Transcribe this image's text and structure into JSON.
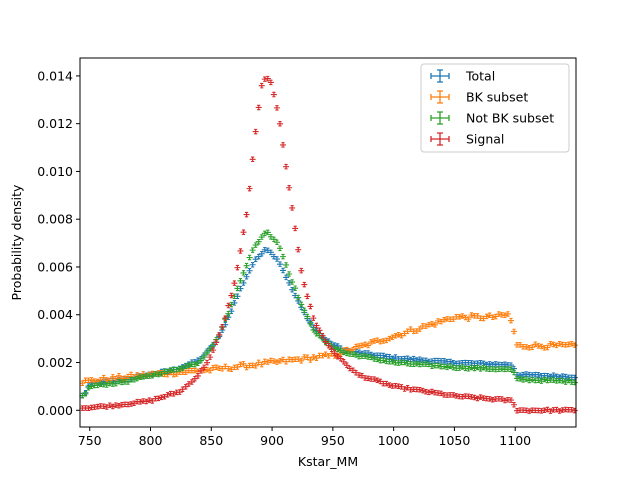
{
  "chart_data": {
    "type": "scatter",
    "title": "",
    "xlabel": "Kstar_MM",
    "ylabel": "Probability density",
    "xlim": [
      742,
      1150
    ],
    "ylim": [
      -0.0007,
      0.01475
    ],
    "xticks": [
      750,
      800,
      850,
      900,
      950,
      1000,
      1050,
      1100
    ],
    "yticks": [
      0.0,
      0.002,
      0.004,
      0.006,
      0.008,
      0.01,
      0.012,
      0.014
    ],
    "ytick_labels": [
      "0.000",
      "0.002",
      "0.004",
      "0.006",
      "0.008",
      "0.010",
      "0.012",
      "0.014"
    ],
    "legend_position": "top-right",
    "error_bars": "x and y",
    "series": [
      {
        "name": "Total",
        "color": "#1f77b4",
        "knots": [
          [
            745,
            0.0006
          ],
          [
            750,
            0.0011
          ],
          [
            780,
            0.0013
          ],
          [
            820,
            0.0017
          ],
          [
            840,
            0.0021
          ],
          [
            855,
            0.0029
          ],
          [
            865,
            0.004
          ],
          [
            875,
            0.0052
          ],
          [
            885,
            0.0062
          ],
          [
            895,
            0.0068
          ],
          [
            905,
            0.0063
          ],
          [
            915,
            0.0052
          ],
          [
            925,
            0.0042
          ],
          [
            935,
            0.0034
          ],
          [
            945,
            0.0029
          ],
          [
            960,
            0.0025
          ],
          [
            1000,
            0.0022
          ],
          [
            1050,
            0.002
          ],
          [
            1098,
            0.0019
          ],
          [
            1101,
            0.0015
          ],
          [
            1150,
            0.0014
          ]
        ]
      },
      {
        "name": "BK subset",
        "color": "#ff7f0e",
        "knots": [
          [
            745,
            0.0012
          ],
          [
            800,
            0.0015
          ],
          [
            850,
            0.0017
          ],
          [
            900,
            0.002
          ],
          [
            950,
            0.0023
          ],
          [
            975,
            0.0027
          ],
          [
            1000,
            0.0031
          ],
          [
            1025,
            0.0035
          ],
          [
            1050,
            0.0039
          ],
          [
            1080,
            0.0039
          ],
          [
            1094,
            0.004
          ],
          [
            1098,
            0.0036
          ],
          [
            1101,
            0.0027
          ],
          [
            1150,
            0.0027
          ]
        ]
      },
      {
        "name": "Not BK subset",
        "color": "#2ca02c",
        "knots": [
          [
            745,
            0.0006
          ],
          [
            750,
            0.001
          ],
          [
            780,
            0.0012
          ],
          [
            820,
            0.0017
          ],
          [
            840,
            0.002
          ],
          [
            855,
            0.003
          ],
          [
            865,
            0.0042
          ],
          [
            875,
            0.0056
          ],
          [
            885,
            0.0068
          ],
          [
            895,
            0.0075
          ],
          [
            905,
            0.007
          ],
          [
            915,
            0.0056
          ],
          [
            925,
            0.0043
          ],
          [
            935,
            0.0033
          ],
          [
            945,
            0.0028
          ],
          [
            960,
            0.0024
          ],
          [
            1000,
            0.002
          ],
          [
            1050,
            0.0018
          ],
          [
            1098,
            0.0017
          ],
          [
            1101,
            0.0013
          ],
          [
            1150,
            0.0012
          ]
        ]
      },
      {
        "name": "Signal",
        "color": "#d62728",
        "knots": [
          [
            745,
            0.0001
          ],
          [
            770,
            0.0002
          ],
          [
            800,
            0.0004
          ],
          [
            825,
            0.0008
          ],
          [
            840,
            0.0015
          ],
          [
            850,
            0.0023
          ],
          [
            860,
            0.0036
          ],
          [
            870,
            0.0055
          ],
          [
            880,
            0.0085
          ],
          [
            886,
            0.0115
          ],
          [
            892,
            0.0138
          ],
          [
            898,
            0.0139
          ],
          [
            905,
            0.0125
          ],
          [
            912,
            0.01
          ],
          [
            918,
            0.008
          ],
          [
            925,
            0.0055
          ],
          [
            935,
            0.0037
          ],
          [
            945,
            0.0028
          ],
          [
            955,
            0.0022
          ],
          [
            970,
            0.0015
          ],
          [
            1000,
            0.001
          ],
          [
            1050,
            0.0006
          ],
          [
            1098,
            0.0004
          ],
          [
            1101,
            0.0
          ],
          [
            1150,
            0.0
          ]
        ]
      }
    ]
  }
}
